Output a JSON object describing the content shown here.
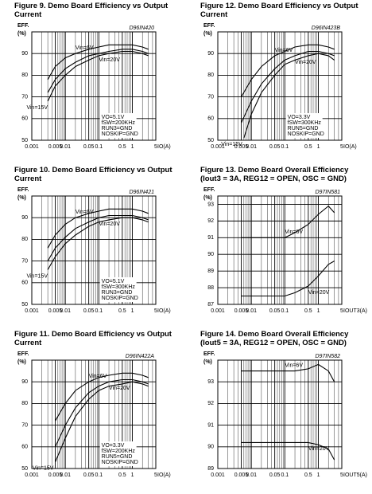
{
  "chart_data": [
    {
      "type": "line",
      "title": "Figure 9. Demo Board Efficiency vs Output Current",
      "code": "D96IN420",
      "ylabel": "EFF.",
      "yunit": "(%)",
      "xlabel": "IO(A)",
      "xlog": true,
      "grid": true,
      "xlim": [
        0.001,
        5
      ],
      "xticks": [
        0.001,
        0.005,
        0.01,
        0.05,
        0.1,
        0.5,
        1,
        5
      ],
      "xminor": [
        0.002,
        0.003,
        0.004,
        0.006,
        0.007,
        0.008,
        0.009,
        0.02,
        0.03,
        0.04,
        0.06,
        0.07,
        0.08,
        0.09,
        0.2,
        0.3,
        0.4,
        0.6,
        0.7,
        0.8,
        0.9,
        2,
        3,
        4
      ],
      "ylim": [
        50,
        100
      ],
      "yticks": [
        50,
        60,
        70,
        80,
        90
      ],
      "notes": [
        "VO=5.1V",
        "fSW=200KHz",
        "RUN3=GND",
        "NOSKIP=GND"
      ],
      "series": [
        {
          "name": "Vin=6V",
          "color": "#000000",
          "x": [
            0.003,
            0.005,
            0.01,
            0.02,
            0.05,
            0.1,
            0.2,
            0.5,
            1,
            2,
            3
          ],
          "values": [
            78,
            84,
            88,
            90,
            92,
            93,
            94,
            94,
            94,
            93,
            92
          ]
        },
        {
          "name": "Vin=20V",
          "color": "#000000",
          "x": [
            0.003,
            0.005,
            0.01,
            0.02,
            0.05,
            0.1,
            0.2,
            0.5,
            1,
            2,
            3
          ],
          "values": [
            72,
            78,
            83,
            86,
            89,
            90,
            91,
            92,
            92,
            91,
            90
          ]
        },
        {
          "name": "Vin=15V",
          "color": "#000000",
          "x": [
            0.003,
            0.005,
            0.01,
            0.02,
            0.05,
            0.1,
            0.2,
            0.5,
            1,
            2,
            3
          ],
          "values": [
            68,
            75,
            80,
            84,
            87,
            89,
            90,
            91,
            91,
            90,
            89
          ]
        }
      ]
    },
    {
      "type": "line",
      "title": "Figure 12. Demo Board Efficiency vs Output Current",
      "code": "D96IN423B",
      "ylabel": "EFF.",
      "yunit": "(%)",
      "xlabel": "IO(A)",
      "xlog": true,
      "grid": true,
      "xlim": [
        0.001,
        5
      ],
      "xticks": [
        0.001,
        0.005,
        0.01,
        0.05,
        0.1,
        0.5,
        1,
        5
      ],
      "xminor": [
        0.002,
        0.003,
        0.004,
        0.006,
        0.007,
        0.008,
        0.009,
        0.02,
        0.03,
        0.04,
        0.06,
        0.07,
        0.08,
        0.09,
        0.2,
        0.3,
        0.4,
        0.6,
        0.7,
        0.8,
        0.9,
        2,
        3,
        4
      ],
      "ylim": [
        50,
        100
      ],
      "yticks": [
        50,
        60,
        70,
        80,
        90
      ],
      "notes": [
        "VO=3.3V",
        "fSW=300KHz",
        "RUN5=GND",
        "NOSKIP=GND"
      ],
      "series": [
        {
          "name": "Vin=6V",
          "color": "#000000",
          "x": [
            0.005,
            0.01,
            0.02,
            0.05,
            0.1,
            0.2,
            0.5,
            1,
            2,
            3
          ],
          "values": [
            70,
            78,
            84,
            89,
            91,
            93,
            94,
            94,
            93,
            92
          ]
        },
        {
          "name": "Vin=20V",
          "color": "#000000",
          "x": [
            0.005,
            0.01,
            0.02,
            0.05,
            0.1,
            0.2,
            0.5,
            1,
            2,
            3
          ],
          "values": [
            58,
            68,
            76,
            83,
            87,
            89,
            91,
            91,
            90,
            89
          ]
        },
        {
          "name": "Vin=15V",
          "color": "#000000",
          "x": [
            0.006,
            0.01,
            0.02,
            0.05,
            0.1,
            0.2,
            0.5,
            1,
            2,
            3
          ],
          "values": [
            51,
            62,
            72,
            80,
            85,
            87,
            89,
            90,
            89,
            87
          ]
        }
      ]
    },
    {
      "type": "line",
      "title": "Figure 10. Demo Board Efficiency vs Output Current",
      "code": "D96IN421",
      "ylabel": "EFF.",
      "yunit": "(%)",
      "xlabel": "IO(A)",
      "xlog": true,
      "grid": true,
      "xlim": [
        0.001,
        5
      ],
      "xticks": [
        0.001,
        0.005,
        0.01,
        0.05,
        0.1,
        0.5,
        1,
        5
      ],
      "xminor": [
        0.002,
        0.003,
        0.004,
        0.006,
        0.007,
        0.008,
        0.009,
        0.02,
        0.03,
        0.04,
        0.06,
        0.07,
        0.08,
        0.09,
        0.2,
        0.3,
        0.4,
        0.6,
        0.7,
        0.8,
        0.9,
        2,
        3,
        4
      ],
      "ylim": [
        50,
        100
      ],
      "yticks": [
        50,
        60,
        70,
        80,
        90
      ],
      "notes": [
        "VO=5.1V",
        "fSW=300KHz",
        "RUN3=GND",
        "NOSKIP=GND"
      ],
      "series": [
        {
          "name": "Vin=6V",
          "color": "#000000",
          "x": [
            0.003,
            0.005,
            0.01,
            0.02,
            0.05,
            0.1,
            0.2,
            0.5,
            1,
            2,
            3
          ],
          "values": [
            76,
            82,
            87,
            90,
            92,
            93,
            94,
            94,
            94,
            93,
            92
          ]
        },
        {
          "name": "Vin=20V",
          "color": "#000000",
          "x": [
            0.003,
            0.005,
            0.01,
            0.02,
            0.05,
            0.1,
            0.2,
            0.5,
            1,
            2,
            3
          ],
          "values": [
            70,
            76,
            81,
            85,
            88,
            90,
            91,
            91,
            91,
            90,
            89
          ]
        },
        {
          "name": "Vin=15V",
          "color": "#000000",
          "x": [
            0.003,
            0.005,
            0.01,
            0.02,
            0.05,
            0.1,
            0.2,
            0.5,
            1,
            2,
            3
          ],
          "values": [
            66,
            72,
            78,
            82,
            86,
            88,
            89,
            90,
            90,
            89,
            88
          ]
        }
      ]
    },
    {
      "type": "line",
      "title": "Figure 13. Demo Board Overall Efficiency (Iout3 = 3A, REG12 = OPEN, OSC = GND)",
      "code": "D97IN581",
      "ylabel": "EFF.",
      "yunit": "(%)",
      "xlabel": "IOUT3(A)",
      "xlog": true,
      "grid": true,
      "xlim": [
        0.001,
        5
      ],
      "xticks": [
        0.001,
        0.005,
        0.01,
        0.05,
        0.1,
        0.5,
        1,
        5
      ],
      "xminor": [
        0.002,
        0.003,
        0.004,
        0.006,
        0.007,
        0.008,
        0.009,
        0.02,
        0.03,
        0.04,
        0.06,
        0.07,
        0.08,
        0.09,
        0.2,
        0.3,
        0.4,
        0.6,
        0.7,
        0.8,
        0.9,
        2,
        3,
        4
      ],
      "ylim": [
        87,
        93.5
      ],
      "yticks": [
        87,
        88,
        89,
        90,
        91,
        92,
        93
      ],
      "series": [
        {
          "name": "Vin=6V",
          "color": "#000000",
          "x": [
            0.005,
            0.01,
            0.05,
            0.1,
            0.2,
            0.5,
            1,
            2,
            3
          ],
          "values": [
            91,
            91,
            91,
            91,
            91.3,
            91.8,
            92.4,
            92.9,
            92.5
          ]
        },
        {
          "name": "Vin=20V",
          "color": "#000000",
          "x": [
            0.005,
            0.01,
            0.05,
            0.1,
            0.2,
            0.5,
            1,
            2,
            3
          ],
          "values": [
            87.5,
            87.5,
            87.5,
            87.5,
            87.7,
            88.1,
            88.7,
            89.4,
            89.6
          ]
        }
      ]
    },
    {
      "type": "line",
      "title": "Figure 11. Demo Board Efficiency vs Output Current",
      "code": "D96IN422A",
      "ylabel": "EFF.",
      "yunit": "(%)",
      "xlabel": "IO(A)",
      "xlog": true,
      "grid": true,
      "xlim": [
        0.001,
        5
      ],
      "xticks": [
        0.001,
        0.005,
        0.01,
        0.05,
        0.1,
        0.5,
        1,
        5
      ],
      "xminor": [
        0.002,
        0.003,
        0.004,
        0.006,
        0.007,
        0.008,
        0.009,
        0.02,
        0.03,
        0.04,
        0.06,
        0.07,
        0.08,
        0.09,
        0.2,
        0.3,
        0.4,
        0.6,
        0.7,
        0.8,
        0.9,
        2,
        3,
        4
      ],
      "ylim": [
        50,
        100
      ],
      "yticks": [
        50,
        60,
        70,
        80,
        90
      ],
      "notes": [
        "VO=3.3V",
        "fSW=200KHz",
        "RUN5=GND",
        "NOSKIP=GND"
      ],
      "series": [
        {
          "name": "Vin=6V",
          "color": "#000000",
          "x": [
            0.005,
            0.01,
            0.02,
            0.05,
            0.1,
            0.2,
            0.5,
            1,
            2,
            3
          ],
          "values": [
            72,
            80,
            86,
            90,
            92,
            93,
            94,
            94,
            93,
            92
          ]
        },
        {
          "name": "Vin=20V",
          "color": "#000000",
          "x": [
            0.005,
            0.01,
            0.02,
            0.05,
            0.1,
            0.2,
            0.5,
            1,
            2,
            3
          ],
          "values": [
            60,
            70,
            78,
            85,
            88,
            90,
            91,
            91,
            90,
            89
          ]
        },
        {
          "name": "Vin=15V",
          "color": "#000000",
          "x": [
            0.005,
            0.01,
            0.02,
            0.05,
            0.1,
            0.2,
            0.5,
            1,
            2,
            3
          ],
          "values": [
            53,
            64,
            74,
            82,
            86,
            88,
            89,
            90,
            89,
            88
          ]
        }
      ]
    },
    {
      "type": "line",
      "title": "Figure 14. Demo Board Overall Efficiency (Iout5 = 3A, REG12 = OPEN, OSC = GND)",
      "code": "D97IN582",
      "ylabel": "EFF.",
      "yunit": "(%)",
      "xlabel": "IOUT5(A)",
      "xlog": true,
      "grid": true,
      "xlim": [
        0.001,
        5
      ],
      "xticks": [
        0.001,
        0.005,
        0.01,
        0.05,
        0.1,
        0.5,
        1,
        5
      ],
      "xminor": [
        0.002,
        0.003,
        0.004,
        0.006,
        0.007,
        0.008,
        0.009,
        0.02,
        0.03,
        0.04,
        0.06,
        0.07,
        0.08,
        0.09,
        0.2,
        0.3,
        0.4,
        0.6,
        0.7,
        0.8,
        0.9,
        2,
        3,
        4
      ],
      "ylim": [
        89,
        94
      ],
      "yticks": [
        89,
        90,
        91,
        92,
        93
      ],
      "series": [
        {
          "name": "Vin=6V",
          "color": "#000000",
          "x": [
            0.005,
            0.01,
            0.05,
            0.1,
            0.2,
            0.5,
            1,
            2,
            3
          ],
          "values": [
            93.5,
            93.5,
            93.5,
            93.5,
            93.5,
            93.6,
            93.8,
            93.5,
            93
          ]
        },
        {
          "name": "Vin=20V",
          "color": "#000000",
          "x": [
            0.005,
            0.01,
            0.05,
            0.1,
            0.2,
            0.5,
            1,
            2,
            3
          ],
          "values": [
            90.2,
            90.2,
            90.2,
            90.2,
            90.2,
            90.2,
            90.1,
            89.9,
            89.4
          ]
        }
      ]
    }
  ]
}
